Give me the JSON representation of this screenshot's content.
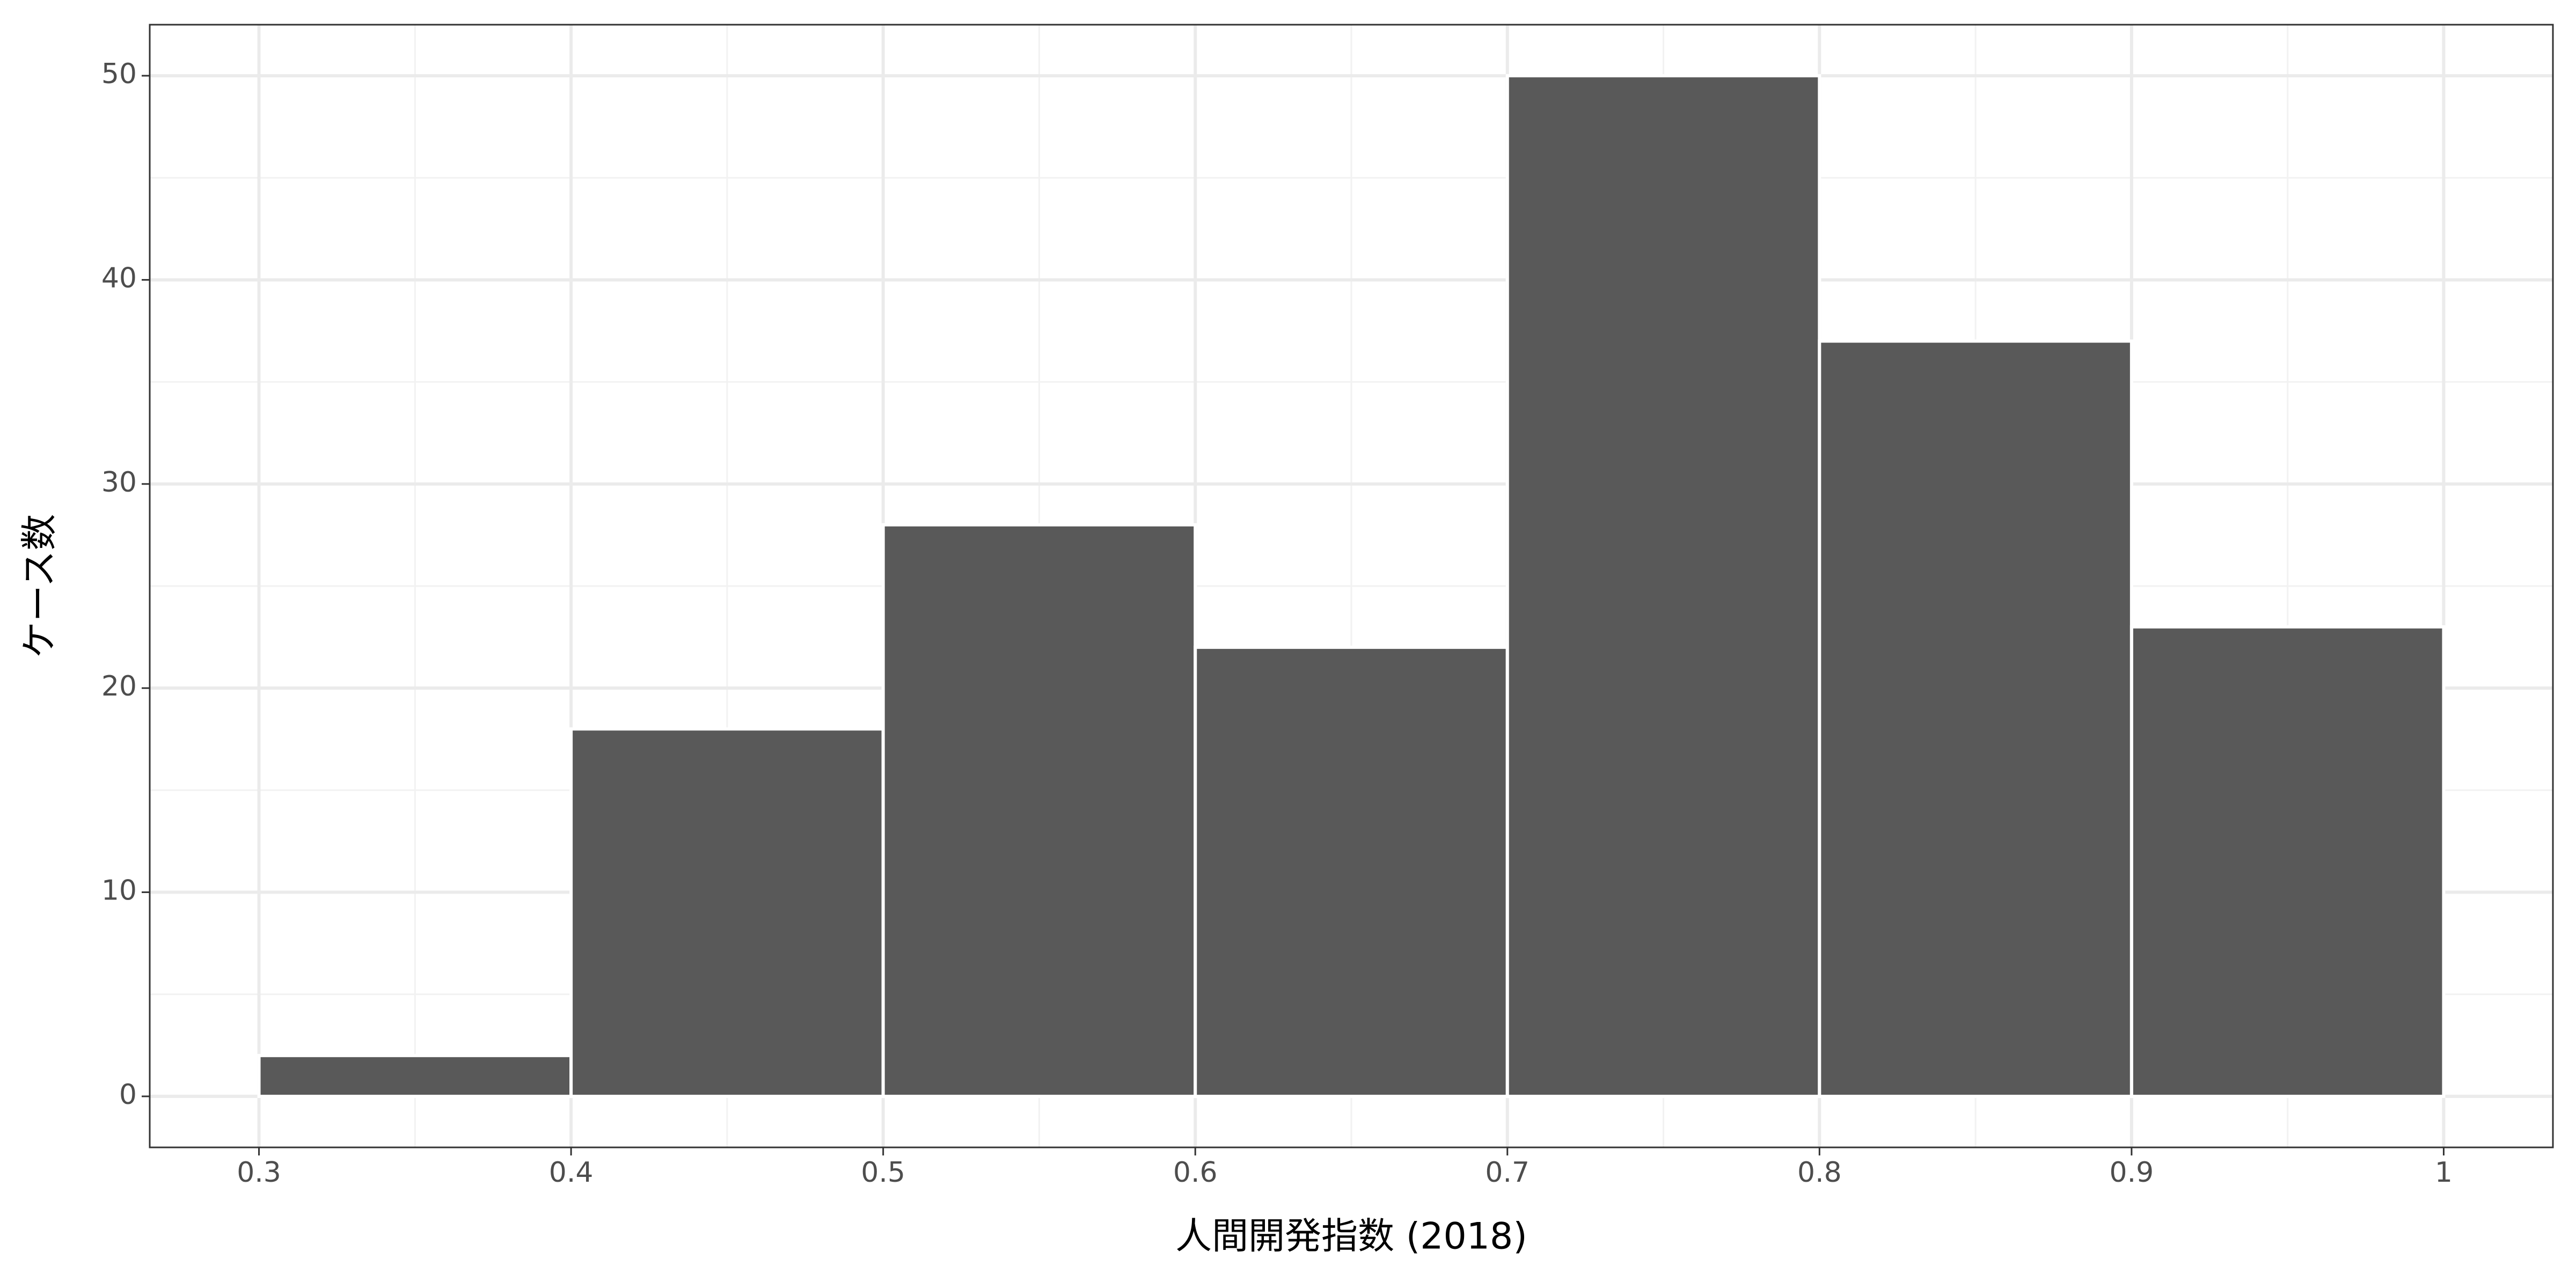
{
  "chart_data": {
    "type": "histogram",
    "xlabel": "人間開発指数 (2018)",
    "ylabel": "ケース数",
    "bins": [
      0.3,
      0.4,
      0.5,
      0.6,
      0.7,
      0.8,
      0.9,
      1.0
    ],
    "values": [
      2,
      18,
      28,
      22,
      50,
      37,
      23
    ],
    "color": "#595959",
    "edgecolor": "#ffffff",
    "xlim": [
      0.265,
      1.035
    ],
    "xticks": [
      0.3,
      0.4,
      0.5,
      0.6,
      0.7,
      0.8,
      0.9,
      1
    ],
    "ylim": [
      -2.5,
      52.5
    ],
    "yticks": [
      0,
      10,
      20,
      30,
      40,
      50
    ],
    "grid": true
  }
}
